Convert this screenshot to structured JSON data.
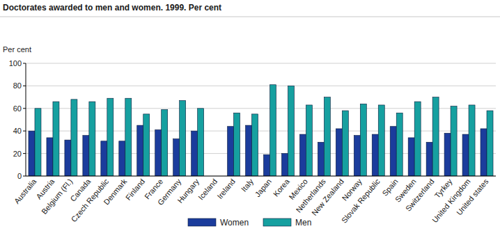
{
  "chart_data": {
    "type": "bar",
    "title": "Doctorates awarded to men and women. 1999. Per cent",
    "y_label": "Per cent",
    "categories": [
      "Australia",
      "Austria",
      "Belgium (Fl.)",
      "Canada",
      "Czech Republic",
      "Denmark",
      "Finland",
      "France",
      "Germany",
      "Hungary",
      "Iceland",
      "Ireland",
      "Italy",
      "Japan",
      "Korea",
      "Mexico",
      "Netherlands",
      "New Zealand",
      "Norway",
      "Slovak Republic",
      "Spain",
      "Sweden",
      "Switzerland",
      "Tyrkey",
      "United Kingdom",
      "United states"
    ],
    "series": [
      {
        "name": "Women",
        "color": "#1b3c9c",
        "values": [
          40,
          34,
          32,
          36,
          31,
          31,
          45,
          41,
          33,
          40,
          null,
          44,
          45,
          19,
          20,
          37,
          30,
          42,
          36,
          37,
          44,
          34,
          30,
          38,
          37,
          42
        ]
      },
      {
        "name": "Men",
        "color": "#16a0a0",
        "values": [
          60,
          66,
          68,
          66,
          69,
          69,
          55,
          59,
          67,
          60,
          null,
          56,
          55,
          81,
          80,
          63,
          70,
          58,
          64,
          63,
          56,
          66,
          70,
          62,
          63,
          58
        ]
      }
    ],
    "ylim": [
      0,
      100
    ],
    "yticks": [
      0,
      20,
      40,
      60,
      80,
      100
    ],
    "grid": true,
    "legend": "bottom"
  }
}
